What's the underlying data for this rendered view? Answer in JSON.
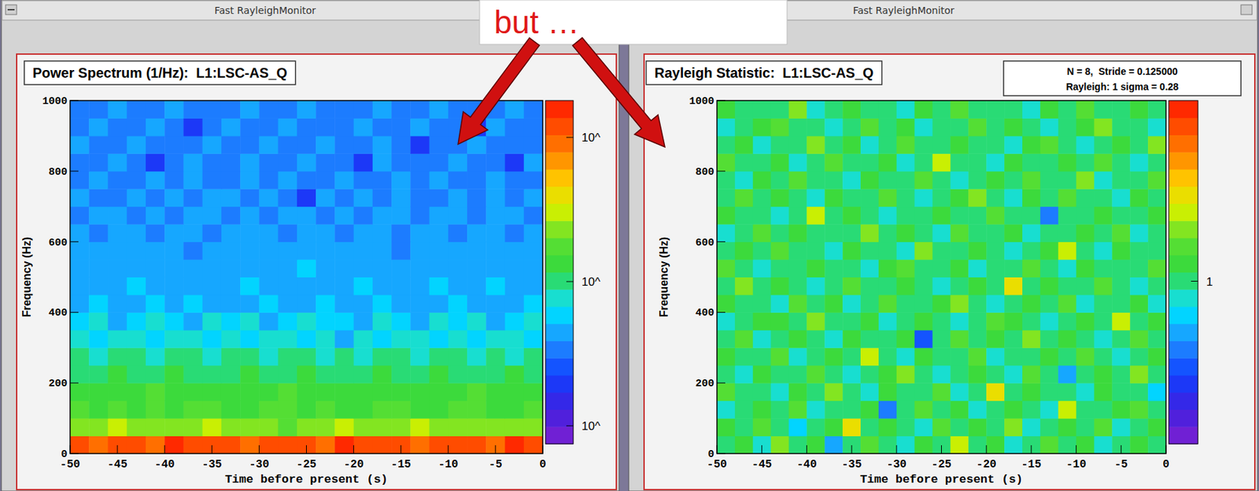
{
  "annotation": "but …",
  "chart_data": [
    {
      "type": "heatmap",
      "window_title": "Fast RayleighMonitor",
      "title": "Power Spectrum (1/Hz):  L1:LSC-AS_Q",
      "x_label": "Time before present (s)",
      "y_label": "Frequency (Hz)",
      "xlim": [
        -50,
        0
      ],
      "xticks": [
        -50,
        -45,
        -40,
        -35,
        -30,
        -25,
        -20,
        -15,
        -10,
        -5,
        0
      ],
      "ylim": [
        0,
        1000
      ],
      "yticks": [
        0,
        200,
        400,
        600,
        800,
        1000
      ],
      "x_bins": [
        -50,
        -48,
        -46,
        -44,
        -42,
        -40,
        -38,
        -36,
        -34,
        -32,
        -30,
        -28,
        -26,
        -24,
        -22,
        -20,
        -18,
        -16,
        -14,
        -12,
        -10,
        -8,
        -6,
        -4,
        -2,
        0
      ],
      "y_bins": [
        0,
        50,
        100,
        150,
        200,
        250,
        300,
        350,
        400,
        450,
        500,
        550,
        600,
        650,
        700,
        750,
        800,
        850,
        900,
        950,
        1000
      ],
      "cells": [
        [
          110,
          95,
          130,
          120,
          100,
          140,
          115,
          105,
          125,
          90,
          135,
          110,
          120,
          100,
          150,
          115,
          105,
          130,
          95,
          120,
          110,
          125,
          100,
          140,
          115
        ],
        [
          24,
          22,
          28,
          25,
          21,
          26,
          23,
          27,
          22,
          25,
          24,
          20,
          26,
          23,
          28,
          22,
          25,
          21,
          27,
          24,
          23,
          26,
          22,
          25,
          24
        ],
        [
          16,
          14,
          18,
          15,
          17,
          13,
          16,
          19,
          14,
          15,
          17,
          16,
          13,
          18,
          15,
          14,
          16,
          17,
          15,
          13,
          16,
          18,
          14,
          15,
          17
        ],
        [
          14,
          12,
          15,
          13,
          16,
          12,
          14,
          13,
          15,
          12,
          14,
          16,
          13,
          12,
          15,
          14,
          13,
          15,
          12,
          14,
          13,
          16,
          12,
          14,
          13
        ],
        [
          11,
          10,
          12,
          9,
          11,
          13,
          10,
          11,
          9,
          12,
          10,
          11,
          12,
          10,
          9,
          11,
          13,
          10,
          11,
          12,
          9,
          11,
          10,
          12,
          11
        ],
        [
          9,
          8,
          10,
          9,
          7,
          9,
          10,
          8,
          9,
          11,
          8,
          9,
          10,
          8,
          9,
          7,
          9,
          10,
          8,
          9,
          10,
          8,
          9,
          8,
          10
        ],
        [
          7,
          6,
          8,
          7,
          6,
          7,
          8,
          6,
          7,
          6,
          8,
          7,
          6,
          7,
          5,
          7,
          6,
          8,
          7,
          6,
          7,
          6,
          8,
          7,
          6
        ],
        [
          6,
          7,
          5,
          6,
          7,
          6,
          5,
          7,
          6,
          7,
          5,
          6,
          7,
          6,
          6,
          5,
          7,
          6,
          5,
          7,
          6,
          7,
          5,
          6,
          7
        ],
        [
          5,
          6,
          5,
          4,
          6,
          5,
          6,
          5,
          5,
          4,
          6,
          5,
          5,
          6,
          4,
          5,
          6,
          5,
          4,
          5,
          6,
          5,
          5,
          4,
          6
        ],
        [
          5,
          4,
          5,
          6,
          5,
          4,
          5,
          5,
          4,
          6,
          5,
          5,
          4,
          5,
          5,
          6,
          4,
          5,
          5,
          6,
          4,
          5,
          6,
          5,
          4
        ],
        [
          4,
          5,
          4,
          5,
          4,
          5,
          5,
          4,
          5,
          4,
          4,
          5,
          6,
          4,
          5,
          4,
          5,
          4,
          5,
          4,
          5,
          4,
          4,
          5,
          5
        ],
        [
          5,
          4,
          4,
          5,
          5,
          4,
          3,
          5,
          4,
          5,
          4,
          4,
          5,
          5,
          4,
          5,
          4,
          3,
          5,
          4,
          4,
          5,
          4,
          4,
          5
        ],
        [
          4,
          3,
          4,
          4,
          3,
          4,
          4,
          3,
          4,
          5,
          4,
          3,
          4,
          4,
          3,
          4,
          4,
          3,
          4,
          4,
          3,
          4,
          5,
          3,
          4
        ],
        [
          3,
          4,
          4,
          3,
          4,
          3,
          4,
          4,
          3,
          4,
          3,
          4,
          4,
          3,
          4,
          3,
          4,
          4,
          3,
          4,
          4,
          3,
          4,
          4,
          3
        ],
        [
          4,
          3,
          3,
          4,
          3,
          4,
          3,
          4,
          4,
          3,
          4,
          3,
          2,
          4,
          3,
          4,
          3,
          4,
          3,
          3,
          4,
          3,
          4,
          3,
          4
        ],
        [
          3,
          4,
          3,
          3,
          4,
          3,
          4,
          3,
          3,
          4,
          3,
          4,
          3,
          3,
          4,
          3,
          3,
          4,
          3,
          4,
          3,
          3,
          4,
          3,
          3
        ],
        [
          3,
          3,
          4,
          3,
          2,
          3,
          4,
          3,
          3,
          4,
          3,
          3,
          4,
          3,
          3,
          2,
          4,
          3,
          3,
          3,
          4,
          3,
          3,
          2,
          4
        ],
        [
          4,
          3,
          3,
          4,
          3,
          3,
          3,
          4,
          3,
          3,
          4,
          3,
          3,
          4,
          3,
          3,
          4,
          3,
          2,
          3,
          3,
          4,
          3,
          3,
          3
        ],
        [
          3,
          4,
          3,
          3,
          4,
          3,
          2,
          3,
          4,
          3,
          3,
          4,
          3,
          3,
          3,
          4,
          3,
          3,
          4,
          3,
          3,
          2,
          4,
          3,
          3
        ],
        [
          3,
          3,
          4,
          3,
          3,
          4,
          3,
          3,
          3,
          4,
          3,
          3,
          4,
          3,
          3,
          3,
          4,
          3,
          3,
          4,
          3,
          3,
          3,
          4,
          3
        ]
      ],
      "colorbar": {
        "lim": [
          0.75,
          180
        ],
        "log": true,
        "ticks": [
          {
            "value": 1,
            "label": "10^"
          },
          {
            "value": 10,
            "label": "10^"
          },
          {
            "value": 100,
            "label": "10^"
          }
        ]
      }
    },
    {
      "type": "heatmap",
      "window_title": "Fast RayleighMonitor",
      "title": "Rayleigh Statistic:  L1:LSC-AS_Q",
      "info": [
        "N = 8,  Stride = 0.125000",
        "Rayleigh: 1 sigma = 0.28"
      ],
      "x_label": "Time before present (s)",
      "y_label": "Frequency (Hz)",
      "xlim": [
        -50,
        0
      ],
      "xticks": [
        -50,
        -45,
        -40,
        -35,
        -30,
        -25,
        -20,
        -15,
        -10,
        -5,
        0
      ],
      "ylim": [
        0,
        1000
      ],
      "yticks": [
        0,
        200,
        400,
        600,
        800,
        1000
      ],
      "x_bins": [
        -50,
        -48,
        -46,
        -44,
        -42,
        -40,
        -38,
        -36,
        -34,
        -32,
        -30,
        -28,
        -26,
        -24,
        -22,
        -20,
        -18,
        -16,
        -14,
        -12,
        -10,
        -8,
        -6,
        -4,
        -2,
        0
      ],
      "y_bins": [
        0,
        50,
        100,
        150,
        200,
        250,
        300,
        350,
        400,
        450,
        500,
        550,
        600,
        650,
        700,
        750,
        800,
        850,
        900,
        950,
        1000
      ],
      "cells": [
        [
          1.0,
          1.1,
          0.9,
          1.3,
          1.0,
          1.1,
          0.7,
          1.0,
          1.2,
          1.0,
          0.9,
          1.1,
          1.0,
          1.4,
          1.0,
          1.1,
          0.9,
          1.0,
          1.2,
          1.0,
          1.1,
          0.9,
          1.0,
          1.1,
          1.0
        ],
        [
          1.1,
          1.0,
          1.2,
          1.0,
          0.8,
          1.0,
          1.1,
          1.5,
          1.0,
          1.1,
          1.0,
          0.9,
          1.2,
          1.0,
          1.1,
          1.0,
          1.3,
          0.9,
          1.0,
          1.1,
          1.0,
          1.2,
          0.9,
          1.0,
          1.1
        ],
        [
          0.9,
          1.0,
          1.1,
          1.0,
          1.2,
          0.9,
          1.0,
          1.0,
          1.1,
          0.6,
          1.0,
          1.2,
          1.0,
          1.1,
          0.9,
          1.0,
          1.1,
          1.0,
          0.9,
          1.4,
          1.0,
          1.0,
          1.1,
          1.2,
          1.0
        ],
        [
          1.2,
          1.0,
          1.0,
          0.9,
          1.1,
          1.0,
          1.3,
          1.0,
          0.9,
          1.1,
          1.0,
          1.0,
          1.2,
          0.9,
          1.0,
          1.5,
          1.0,
          1.1,
          1.0,
          1.0,
          0.9,
          1.1,
          1.0,
          1.0,
          0.8
        ],
        [
          1.0,
          0.9,
          1.1,
          1.0,
          1.0,
          1.2,
          1.0,
          0.9,
          1.0,
          1.1,
          1.3,
          1.0,
          0.9,
          1.0,
          1.1,
          1.0,
          0.9,
          1.2,
          1.0,
          0.7,
          1.0,
          1.1,
          1.0,
          1.3,
          1.0
        ],
        [
          1.1,
          1.0,
          1.0,
          1.2,
          0.9,
          1.0,
          1.1,
          1.0,
          1.4,
          1.0,
          0.9,
          1.1,
          1.0,
          1.0,
          1.2,
          0.9,
          1.0,
          1.0,
          1.1,
          1.0,
          1.2,
          1.0,
          0.9,
          1.0,
          1.1
        ],
        [
          1.0,
          1.2,
          0.9,
          1.0,
          1.1,
          1.0,
          0.9,
          1.1,
          1.0,
          1.0,
          1.1,
          0.5,
          1.0,
          1.2,
          1.0,
          1.1,
          1.0,
          1.3,
          1.0,
          1.1,
          1.0,
          0.9,
          1.0,
          1.2,
          1.0
        ],
        [
          0.9,
          1.0,
          1.1,
          1.1,
          1.0,
          1.3,
          1.0,
          1.0,
          1.1,
          0.9,
          1.0,
          1.1,
          1.0,
          0.9,
          1.0,
          1.2,
          1.1,
          1.0,
          0.9,
          1.0,
          1.1,
          1.0,
          1.4,
          1.0,
          1.1
        ],
        [
          1.1,
          1.0,
          1.0,
          0.9,
          1.2,
          1.0,
          1.1,
          0.9,
          1.0,
          1.2,
          1.0,
          1.0,
          1.1,
          1.3,
          1.0,
          0.9,
          1.0,
          1.1,
          1.0,
          1.2,
          0.9,
          1.0,
          1.0,
          1.1,
          0.9
        ],
        [
          1.0,
          1.3,
          1.0,
          1.1,
          1.0,
          0.9,
          1.0,
          1.2,
          1.0,
          1.0,
          1.1,
          1.0,
          0.9,
          1.0,
          1.1,
          1.0,
          1.5,
          1.0,
          1.1,
          1.0,
          1.0,
          1.2,
          1.0,
          0.9,
          1.0
        ],
        [
          1.2,
          1.0,
          0.9,
          1.0,
          1.0,
          1.1,
          1.0,
          1.0,
          0.9,
          1.1,
          1.2,
          1.0,
          1.0,
          1.1,
          0.9,
          1.0,
          1.0,
          1.2,
          1.0,
          0.9,
          1.1,
          1.0,
          1.0,
          1.0,
          1.2
        ],
        [
          1.0,
          1.1,
          1.0,
          1.2,
          1.0,
          1.0,
          0.9,
          1.1,
          1.0,
          1.0,
          0.9,
          1.3,
          1.0,
          1.0,
          1.1,
          1.0,
          0.9,
          1.0,
          1.1,
          1.4,
          1.0,
          0.9,
          1.1,
          1.0,
          1.0
        ],
        [
          0.9,
          1.0,
          1.2,
          1.0,
          1.1,
          1.0,
          1.0,
          1.0,
          1.3,
          1.0,
          1.1,
          1.0,
          0.9,
          1.2,
          1.0,
          1.0,
          1.1,
          0.9,
          1.0,
          1.0,
          1.1,
          1.0,
          1.2,
          0.9,
          1.0
        ],
        [
          1.1,
          1.0,
          1.0,
          0.9,
          1.0,
          1.4,
          1.0,
          1.1,
          1.0,
          0.9,
          1.0,
          1.0,
          1.1,
          1.0,
          1.0,
          1.2,
          1.0,
          1.0,
          0.6,
          1.0,
          1.0,
          1.1,
          1.0,
          1.0,
          1.1
        ],
        [
          1.0,
          1.2,
          1.0,
          1.1,
          1.0,
          0.9,
          1.1,
          1.0,
          1.0,
          1.2,
          1.0,
          0.9,
          1.0,
          1.1,
          1.3,
          1.0,
          0.9,
          1.1,
          1.0,
          1.2,
          1.0,
          1.0,
          0.9,
          1.1,
          1.0
        ],
        [
          1.0,
          0.9,
          1.1,
          1.0,
          1.2,
          1.0,
          1.0,
          0.9,
          1.1,
          1.0,
          1.0,
          1.2,
          1.0,
          0.9,
          1.0,
          1.1,
          1.0,
          1.2,
          1.0,
          1.0,
          1.3,
          0.9,
          1.0,
          1.0,
          1.2
        ],
        [
          1.2,
          1.0,
          1.0,
          1.1,
          0.9,
          1.0,
          1.2,
          1.0,
          1.0,
          1.1,
          0.9,
          1.0,
          1.4,
          1.0,
          1.0,
          0.9,
          1.1,
          1.0,
          1.0,
          1.1,
          1.0,
          1.2,
          1.0,
          0.9,
          1.0
        ],
        [
          1.0,
          1.1,
          0.9,
          1.0,
          1.0,
          1.3,
          1.0,
          1.1,
          0.9,
          1.0,
          1.2,
          1.0,
          1.0,
          1.1,
          1.0,
          1.0,
          0.9,
          1.1,
          1.2,
          1.0,
          0.9,
          1.0,
          1.1,
          1.0,
          1.3
        ],
        [
          0.9,
          1.0,
          1.1,
          1.2,
          1.0,
          1.0,
          0.9,
          1.0,
          1.2,
          1.0,
          1.1,
          0.9,
          1.0,
          1.0,
          1.2,
          1.0,
          1.1,
          1.0,
          0.9,
          1.0,
          1.1,
          1.3,
          1.0,
          1.0,
          0.9
        ],
        [
          1.1,
          1.0,
          1.0,
          1.0,
          1.3,
          0.9,
          1.0,
          1.1,
          1.0,
          1.0,
          0.9,
          1.1,
          1.0,
          1.2,
          1.0,
          1.0,
          1.0,
          0.9,
          1.1,
          1.0,
          1.2,
          1.0,
          1.0,
          1.1,
          1.0
        ]
      ],
      "colorbar": {
        "lim": [
          0.1,
          2
        ],
        "log": false,
        "ticks": [
          1
        ]
      }
    }
  ]
}
